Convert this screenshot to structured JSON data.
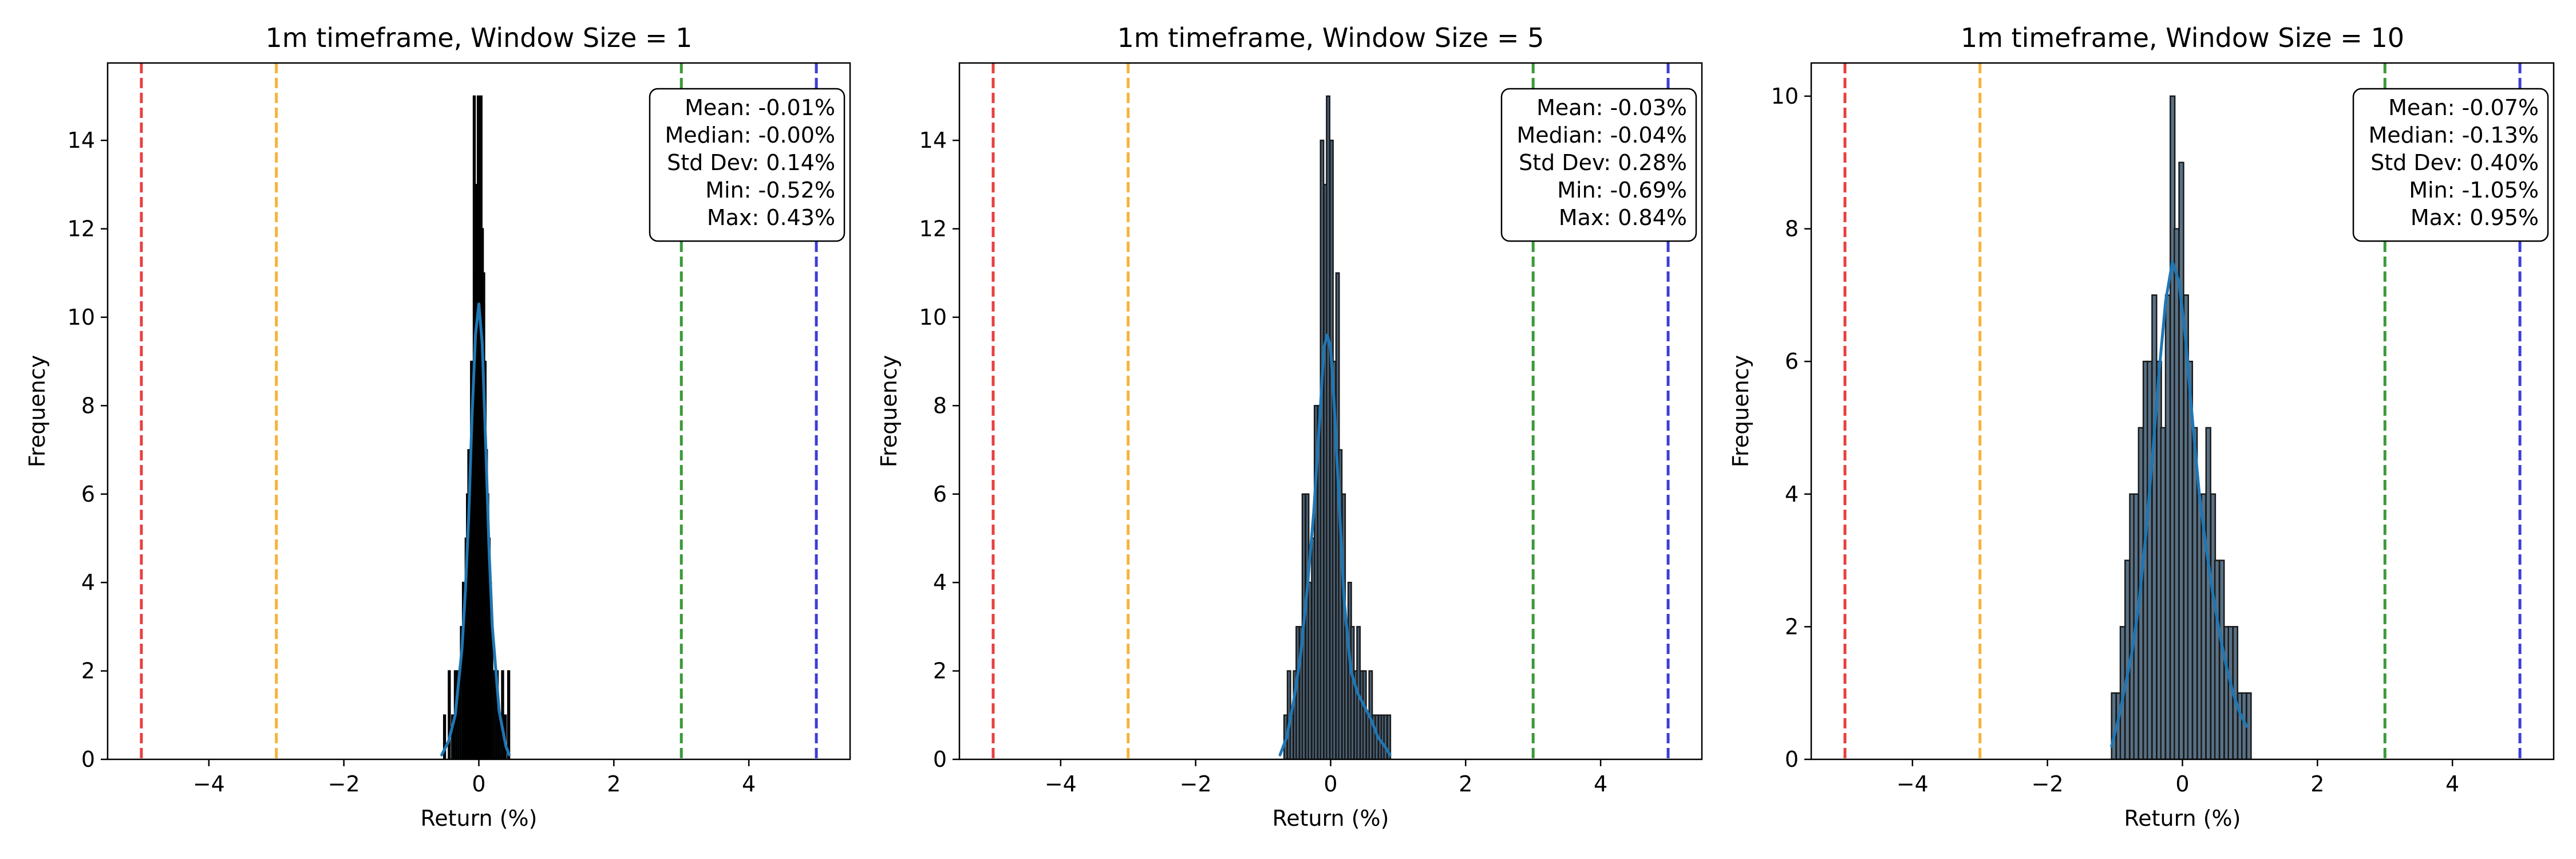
{
  "chart_data": [
    {
      "type": "bar",
      "title": "1m timeframe, Window Size = 1",
      "xlabel": "Return (%)",
      "ylabel": "Frequency",
      "xlim": [
        -5.5,
        5.5
      ],
      "ylim": [
        0,
        15.75
      ],
      "xticks": [
        -4,
        -2,
        0,
        2,
        4
      ],
      "xtick_labels": [
        "−4",
        "−2",
        "0",
        "2",
        "4"
      ],
      "yticks": [
        0,
        2,
        4,
        6,
        8,
        10,
        12,
        14
      ],
      "ytick_labels": [
        "0",
        "2",
        "4",
        "6",
        "8",
        "10",
        "12",
        "14"
      ],
      "grid": false,
      "bar_fill": "#1f2a38",
      "bar_edge": "#000000",
      "kde_color": "#1f77b4",
      "bin_width": 0.0238,
      "bins": [
        [
          -0.52,
          1
        ],
        [
          -0.45,
          2
        ],
        [
          -0.4,
          1
        ],
        [
          -0.36,
          2
        ],
        [
          -0.33,
          2
        ],
        [
          -0.3,
          2
        ],
        [
          -0.27,
          3
        ],
        [
          -0.24,
          4
        ],
        [
          -0.22,
          4
        ],
        [
          -0.2,
          5
        ],
        [
          -0.18,
          6
        ],
        [
          -0.16,
          7
        ],
        [
          -0.14,
          7
        ],
        [
          -0.12,
          9
        ],
        [
          -0.1,
          9
        ],
        [
          -0.08,
          15
        ],
        [
          -0.06,
          11
        ],
        [
          -0.04,
          13
        ],
        [
          -0.02,
          15
        ],
        [
          0.0,
          14
        ],
        [
          0.02,
          15
        ],
        [
          0.04,
          12
        ],
        [
          0.06,
          11
        ],
        [
          0.08,
          9
        ],
        [
          0.1,
          7
        ],
        [
          0.12,
          6
        ],
        [
          0.14,
          5
        ],
        [
          0.16,
          4
        ],
        [
          0.18,
          3
        ],
        [
          0.2,
          2
        ],
        [
          0.23,
          2
        ],
        [
          0.26,
          2
        ],
        [
          0.3,
          1
        ],
        [
          0.34,
          2
        ],
        [
          0.38,
          1
        ],
        [
          0.43,
          2
        ]
      ],
      "kde": {
        "x": [
          -0.55,
          -0.45,
          -0.35,
          -0.25,
          -0.2,
          -0.15,
          -0.1,
          -0.05,
          0.0,
          0.05,
          0.1,
          0.15,
          0.2,
          0.3,
          0.4,
          0.45
        ],
        "y": [
          0.1,
          0.4,
          1.0,
          2.5,
          3.8,
          5.5,
          7.8,
          9.6,
          10.3,
          9.4,
          7.2,
          4.8,
          3.0,
          1.1,
          0.3,
          0.1
        ]
      },
      "reference_lines": [
        {
          "x": -5,
          "color": "#e8403f"
        },
        {
          "x": -3,
          "color": "#f7b23b"
        },
        {
          "x": 3,
          "color": "#3a9a3a"
        },
        {
          "x": 5,
          "color": "#3d3dd9"
        }
      ],
      "stats_lines": [
        "Mean: -0.01%",
        "Median: -0.00%",
        "Std Dev: 0.14%",
        "Min: -0.52%",
        "Max: 0.43%"
      ]
    },
    {
      "type": "bar",
      "title": "1m timeframe, Window Size = 5",
      "xlabel": "Return (%)",
      "ylabel": "Frequency",
      "xlim": [
        -5.5,
        5.5
      ],
      "ylim": [
        0,
        15.75
      ],
      "xticks": [
        -4,
        -2,
        0,
        2,
        4
      ],
      "xtick_labels": [
        "−4",
        "−2",
        "0",
        "2",
        "4"
      ],
      "yticks": [
        0,
        2,
        4,
        6,
        8,
        10,
        12,
        14
      ],
      "ytick_labels": [
        "0",
        "2",
        "4",
        "6",
        "8",
        "10",
        "12",
        "14"
      ],
      "grid": false,
      "bar_fill": "#4a6278",
      "bar_edge": "#1a1a1a",
      "kde_color": "#1f77b4",
      "bin_width": 0.0455,
      "bins": [
        [
          -0.69,
          1
        ],
        [
          -0.64,
          2
        ],
        [
          -0.6,
          1
        ],
        [
          -0.55,
          2
        ],
        [
          -0.51,
          3
        ],
        [
          -0.46,
          3
        ],
        [
          -0.42,
          6
        ],
        [
          -0.37,
          6
        ],
        [
          -0.33,
          4
        ],
        [
          -0.28,
          5
        ],
        [
          -0.24,
          8
        ],
        [
          -0.19,
          8
        ],
        [
          -0.15,
          14
        ],
        [
          -0.1,
          13
        ],
        [
          -0.06,
          15
        ],
        [
          -0.01,
          14
        ],
        [
          0.03,
          9
        ],
        [
          0.08,
          11
        ],
        [
          0.12,
          7
        ],
        [
          0.17,
          6
        ],
        [
          0.21,
          3
        ],
        [
          0.26,
          4
        ],
        [
          0.3,
          3
        ],
        [
          0.35,
          2
        ],
        [
          0.39,
          3
        ],
        [
          0.44,
          2
        ],
        [
          0.48,
          2
        ],
        [
          0.53,
          1
        ],
        [
          0.57,
          2
        ],
        [
          0.62,
          1
        ],
        [
          0.66,
          1
        ],
        [
          0.71,
          1
        ],
        [
          0.75,
          1
        ],
        [
          0.79,
          1
        ],
        [
          0.84,
          1
        ]
      ],
      "kde": {
        "x": [
          -0.75,
          -0.65,
          -0.55,
          -0.45,
          -0.35,
          -0.25,
          -0.15,
          -0.1,
          -0.05,
          0.0,
          0.05,
          0.1,
          0.2,
          0.3,
          0.4,
          0.5,
          0.6,
          0.7,
          0.8,
          0.88
        ],
        "y": [
          0.1,
          0.5,
          1.3,
          2.3,
          3.8,
          5.6,
          8.0,
          9.3,
          9.6,
          9.3,
          8.1,
          6.6,
          3.6,
          2.0,
          1.5,
          1.2,
          0.9,
          0.5,
          0.3,
          0.1
        ]
      },
      "reference_lines": [
        {
          "x": -5,
          "color": "#e8403f"
        },
        {
          "x": -3,
          "color": "#f7b23b"
        },
        {
          "x": 3,
          "color": "#3a9a3a"
        },
        {
          "x": 5,
          "color": "#3d3dd9"
        }
      ],
      "stats_lines": [
        "Mean: -0.03%",
        "Median: -0.04%",
        "Std Dev: 0.28%",
        "Min: -0.69%",
        "Max: 0.84%"
      ]
    },
    {
      "type": "bar",
      "title": "1m timeframe, Window Size = 10",
      "xlabel": "Return (%)",
      "ylabel": "Frequency",
      "xlim": [
        -5.5,
        5.5
      ],
      "ylim": [
        0,
        10.5
      ],
      "xticks": [
        -4,
        -2,
        0,
        2,
        4
      ],
      "xtick_labels": [
        "−4",
        "−2",
        "0",
        "2",
        "4"
      ],
      "yticks": [
        0,
        2,
        4,
        6,
        8,
        10
      ],
      "ytick_labels": [
        "0",
        "2",
        "4",
        "6",
        "8",
        "10"
      ],
      "grid": false,
      "bar_fill": "#587186",
      "bar_edge": "#1a1a1a",
      "kde_color": "#1f77b4",
      "bin_width": 0.0667,
      "bins": [
        [
          -1.05,
          1
        ],
        [
          -0.98,
          1
        ],
        [
          -0.92,
          2
        ],
        [
          -0.85,
          3
        ],
        [
          -0.78,
          4
        ],
        [
          -0.72,
          4
        ],
        [
          -0.65,
          5
        ],
        [
          -0.58,
          6
        ],
        [
          -0.52,
          6
        ],
        [
          -0.45,
          7
        ],
        [
          -0.38,
          6
        ],
        [
          -0.32,
          5
        ],
        [
          -0.25,
          7
        ],
        [
          -0.18,
          10
        ],
        [
          -0.12,
          8
        ],
        [
          -0.05,
          9
        ],
        [
          0.02,
          7
        ],
        [
          0.08,
          6
        ],
        [
          0.15,
          5
        ],
        [
          0.22,
          4
        ],
        [
          0.28,
          4
        ],
        [
          0.35,
          5
        ],
        [
          0.42,
          4
        ],
        [
          0.48,
          3
        ],
        [
          0.55,
          3
        ],
        [
          0.62,
          2
        ],
        [
          0.68,
          2
        ],
        [
          0.75,
          2
        ],
        [
          0.82,
          1
        ],
        [
          0.88,
          1
        ],
        [
          0.95,
          1
        ]
      ],
      "kde": {
        "x": [
          -1.05,
          -0.95,
          -0.85,
          -0.75,
          -0.65,
          -0.55,
          -0.45,
          -0.35,
          -0.25,
          -0.15,
          -0.05,
          0.05,
          0.15,
          0.25,
          0.35,
          0.45,
          0.55,
          0.65,
          0.75,
          0.85,
          0.95
        ],
        "y": [
          0.2,
          0.6,
          1.1,
          1.6,
          2.3,
          3.3,
          4.5,
          5.8,
          6.9,
          7.5,
          7.2,
          6.3,
          5.1,
          4.0,
          3.2,
          2.5,
          1.9,
          1.4,
          1.0,
          0.7,
          0.5
        ]
      },
      "reference_lines": [
        {
          "x": -5,
          "color": "#e8403f"
        },
        {
          "x": -3,
          "color": "#f7b23b"
        },
        {
          "x": 3,
          "color": "#3a9a3a"
        },
        {
          "x": 5,
          "color": "#3d3dd9"
        }
      ],
      "stats_lines": [
        "Mean: -0.07%",
        "Median: -0.13%",
        "Std Dev: 0.40%",
        "Min: -1.05%",
        "Max: 0.95%"
      ]
    }
  ]
}
